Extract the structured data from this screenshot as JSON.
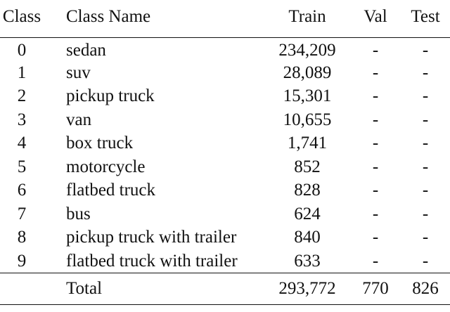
{
  "table": {
    "headers": {
      "class": "Class",
      "class_name": "Class Name",
      "train": "Train",
      "val": "Val",
      "test": "Test"
    },
    "rows": [
      {
        "class": "0",
        "name": "sedan",
        "train": "234,209",
        "val": "-",
        "test": "-"
      },
      {
        "class": "1",
        "name": "suv",
        "train": "28,089",
        "val": "-",
        "test": "-"
      },
      {
        "class": "2",
        "name": "pickup truck",
        "train": "15,301",
        "val": "-",
        "test": "-"
      },
      {
        "class": "3",
        "name": "van",
        "train": "10,655",
        "val": "-",
        "test": "-"
      },
      {
        "class": "4",
        "name": "box truck",
        "train": "1,741",
        "val": "-",
        "test": "-"
      },
      {
        "class": "5",
        "name": "motorcycle",
        "train": "852",
        "val": "-",
        "test": "-"
      },
      {
        "class": "6",
        "name": "flatbed truck",
        "train": "828",
        "val": "-",
        "test": "-"
      },
      {
        "class": "7",
        "name": "bus",
        "train": "624",
        "val": "-",
        "test": "-"
      },
      {
        "class": "8",
        "name": "pickup truck with trailer",
        "train": "840",
        "val": "-",
        "test": "-"
      },
      {
        "class": "9",
        "name": "flatbed truck with trailer",
        "train": "633",
        "val": "-",
        "test": "-"
      }
    ],
    "total": {
      "class": "",
      "name": "Total",
      "train": "293,772",
      "val": "770",
      "test": "826"
    }
  }
}
